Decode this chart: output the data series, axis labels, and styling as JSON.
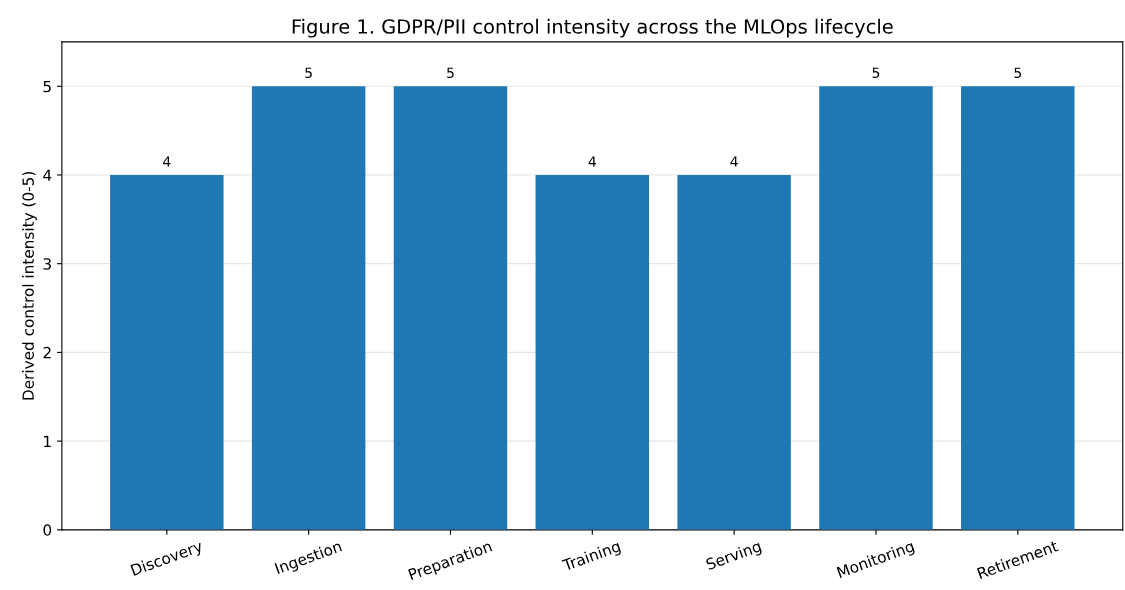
{
  "chart_data": {
    "type": "bar",
    "title": "Figure 1. GDPR/PII control intensity across the MLOps lifecycle",
    "ylabel": "Derived control intensity (0-5)",
    "categories": [
      "Discovery",
      "Ingestion",
      "Preparation",
      "Training",
      "Serving",
      "Monitoring",
      "Retirement"
    ],
    "values": [
      4,
      5,
      5,
      4,
      4,
      5,
      5
    ],
    "color": "#1f77b4",
    "ylim": [
      0,
      5.5
    ],
    "yticks": [
      0,
      1,
      2,
      3,
      4,
      5
    ],
    "grid": "y",
    "data_labels": true
  }
}
